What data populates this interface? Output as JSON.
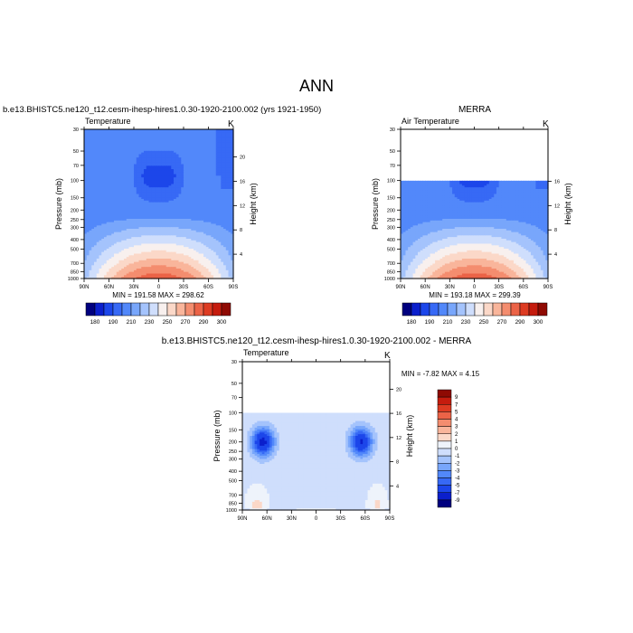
{
  "title": "ANN",
  "colors": {
    "abs_palette": [
      "#00007f",
      "#0b1fcc",
      "#1c46ea",
      "#3769f5",
      "#5288fa",
      "#78a6fb",
      "#a4c3fc",
      "#cfdefc",
      "#f8f0ee",
      "#fbd8c8",
      "#f9b59b",
      "#f48d6f",
      "#eb6347",
      "#dd3b22",
      "#c51c0e",
      "#8f0a03"
    ],
    "diff_palette": [
      "#00007f",
      "#0b1fcc",
      "#1c46ea",
      "#3769f5",
      "#5288fa",
      "#78a6fb",
      "#a4c3fc",
      "#cfdefc",
      "#eef3fb",
      "#fbd8c8",
      "#f9b59b",
      "#f48d6f",
      "#eb6347",
      "#dd3b22",
      "#c51c0e",
      "#8f0a03"
    ],
    "axis": "#000000"
  },
  "chart_data": [
    {
      "type": "heatmap",
      "title": "b.e13.BHISTC5.ne120_t12.cesm-ihesp-hires1.0.30-1920-2100.002 (yrs 1921-1950)",
      "left_label": "Temperature",
      "right_label": "K",
      "xlabel": "",
      "ylabel": "Pressure (mb)",
      "y2label": "Height (km)",
      "x_ticks": [
        "90N",
        "60N",
        "30N",
        "0",
        "30S",
        "60S",
        "90S"
      ],
      "y_ticks": [
        "30",
        "50",
        "70",
        "100",
        "150",
        "200",
        "250",
        "300",
        "400",
        "500",
        "700",
        "850",
        "1000"
      ],
      "y2_ticks": [
        "20",
        "16",
        "12",
        "8",
        "4"
      ],
      "ylim": [
        1000,
        30
      ],
      "stats": "MIN = 191.58   MAX = 298.62",
      "levels": [
        180,
        190,
        200,
        210,
        220,
        230,
        240,
        250,
        260,
        270,
        280,
        290,
        300
      ],
      "colorbar_labels": [
        "180",
        "190",
        "210",
        "230",
        "250",
        "270",
        "290",
        "300"
      ],
      "min": 191.58,
      "max": 298.62,
      "data_top_mb": 30
    },
    {
      "type": "heatmap",
      "title": "MERRA",
      "left_label": "Air Temperature",
      "right_label": "K",
      "xlabel": "",
      "ylabel": "Pressure (mb)",
      "y2label": "Height (km)",
      "x_ticks": [
        "90N",
        "60N",
        "30N",
        "0",
        "30S",
        "60S",
        "90S"
      ],
      "y_ticks": [
        "30",
        "50",
        "70",
        "100",
        "150",
        "200",
        "250",
        "300",
        "400",
        "500",
        "700",
        "850",
        "1000"
      ],
      "y2_ticks": [
        "16",
        "12",
        "8",
        "4"
      ],
      "ylim": [
        1000,
        30
      ],
      "stats": "MIN = 193.18   MAX = 299.39",
      "levels": [
        180,
        190,
        200,
        210,
        220,
        230,
        240,
        250,
        260,
        270,
        280,
        290,
        300
      ],
      "colorbar_labels": [
        "180",
        "190",
        "210",
        "230",
        "250",
        "270",
        "290",
        "300"
      ],
      "min": 193.18,
      "max": 299.39,
      "data_top_mb": 100
    },
    {
      "type": "heatmap",
      "title": "b.e13.BHISTC5.ne120_t12.cesm-ihesp-hires1.0.30-1920-2100.002 - MERRA",
      "left_label": "Temperature",
      "right_label": "K",
      "xlabel": "",
      "ylabel": "Pressure (mb)",
      "y2label": "Height (km)",
      "x_ticks": [
        "90N",
        "60N",
        "30N",
        "0",
        "30S",
        "60S",
        "90S"
      ],
      "y_ticks": [
        "30",
        "50",
        "70",
        "100",
        "150",
        "200",
        "250",
        "300",
        "400",
        "500",
        "700",
        "850",
        "1000"
      ],
      "y2_ticks": [
        "20",
        "16",
        "12",
        "8",
        "4"
      ],
      "ylim": [
        1000,
        30
      ],
      "stats": "MIN =  -7.82  MAX =   4.15",
      "levels": [
        -9,
        -7,
        -5,
        -4,
        -3,
        -2,
        -1,
        0,
        1,
        2,
        3,
        4,
        5,
        7,
        9
      ],
      "colorbar_labels": [
        "9",
        "7",
        "5",
        "4",
        "3",
        "2",
        "1",
        "0",
        "-1",
        "-2",
        "-3",
        "-4",
        "-5",
        "-7",
        "-9"
      ],
      "min": -7.82,
      "max": 4.15,
      "data_top_mb": 100
    }
  ]
}
